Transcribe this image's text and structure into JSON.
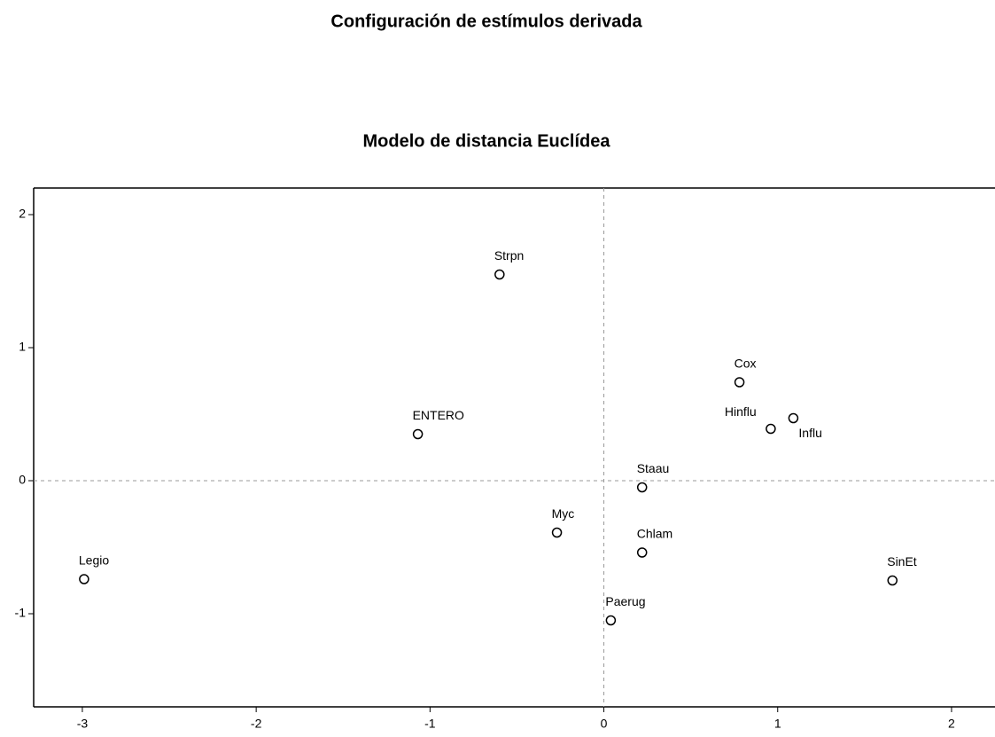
{
  "chart_data": {
    "type": "scatter",
    "title": "Configuración de estímulos derivada",
    "subtitle": "Modelo de distancia Euclídea",
    "labels": [
      "Strpn",
      "Cox",
      "Hinflu",
      "Influ",
      "ENTERO",
      "Staau",
      "Myc",
      "Chlam",
      "Legio",
      "SinEt",
      "Paerug"
    ],
    "x": [
      -0.6,
      0.78,
      0.96,
      1.09,
      -1.07,
      0.22,
      -0.27,
      0.22,
      -2.99,
      1.66,
      0.04
    ],
    "values": [
      1.55,
      0.74,
      0.39,
      0.47,
      0.35,
      -0.05,
      -0.39,
      -0.54,
      -0.74,
      -0.75,
      -1.05
    ],
    "color": "#000000",
    "xlim": [
      -3.28,
      2.25
    ],
    "ylim": [
      -1.7,
      2.2
    ],
    "xticks": [
      -3,
      -2,
      -1,
      0,
      1,
      2
    ],
    "yticks": [
      -1,
      0,
      1,
      2
    ],
    "reference_lines": true
  }
}
